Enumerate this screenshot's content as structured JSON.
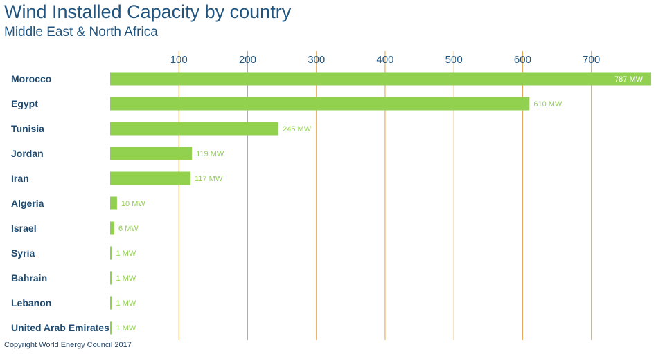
{
  "chart_data": {
    "type": "bar",
    "orientation": "horizontal",
    "title": "Wind Installed Capacity by country",
    "subtitle": "Middle East & North Africa",
    "categories": [
      "Morocco",
      "Egypt",
      "Tunisia",
      "Jordan",
      "Iran",
      "Algeria",
      "Israel",
      "Syria",
      "Bahrain",
      "Lebanon",
      "United Arab Emirates"
    ],
    "values": [
      787,
      610,
      245,
      119,
      117,
      10,
      6,
      1,
      1,
      1,
      1
    ],
    "value_labels": [
      "787 MW",
      "610 MW",
      "245 MW",
      "119 MW",
      "117 MW",
      "10 MW",
      "6 MW",
      "1 MW",
      "1 MW",
      "1 MW",
      "1 MW"
    ],
    "x_ticks": [
      "100",
      "200",
      "300",
      "400",
      "500",
      "600",
      "700"
    ],
    "x_tick_values": [
      100,
      200,
      300,
      400,
      500,
      600,
      700
    ],
    "xlim": [
      0,
      787
    ],
    "xlabel": "",
    "ylabel": "",
    "grid": "vertical",
    "bar_color": "#92d050",
    "grid_color": "#e3a048",
    "label_color": "#1f5580"
  },
  "footer": "Copyright World Energy Council 2017"
}
